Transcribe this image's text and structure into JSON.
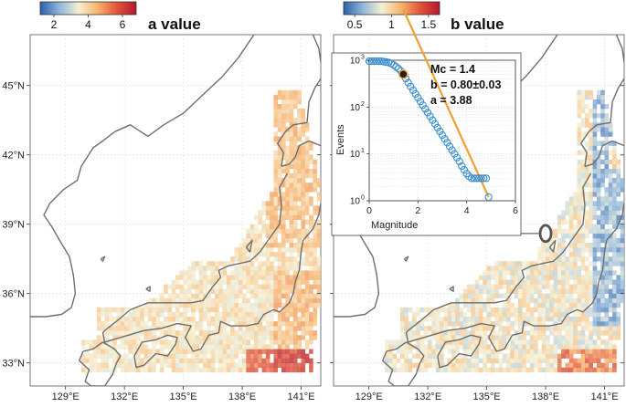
{
  "panels": [
    {
      "id": "a",
      "title": "a value",
      "colorbar": {
        "ticks": [
          "2",
          "4",
          "6"
        ],
        "tick_values": [
          2,
          4,
          6
        ],
        "range": [
          1.2,
          6.8
        ],
        "colors": [
          "#2c5fa8",
          "#8fb6da",
          "#f5f0d2",
          "#f6b26b",
          "#e0543b",
          "#b2182b"
        ]
      }
    },
    {
      "id": "b",
      "title": "b value",
      "colorbar": {
        "ticks": [
          "0.5",
          "1",
          "1.5"
        ],
        "tick_values": [
          0.5,
          1,
          1.5
        ],
        "range": [
          0.35,
          1.65
        ],
        "colors": [
          "#2c5fa8",
          "#8fb6da",
          "#f5f0d2",
          "#f6b26b",
          "#e0543b",
          "#b2182b"
        ]
      }
    }
  ],
  "map_axes": {
    "lon_ticks": [
      "129°E",
      "132°E",
      "135°E",
      "138°E",
      "141°E"
    ],
    "lon_values": [
      129,
      132,
      135,
      138,
      141
    ],
    "lat_ticks": [
      "33°N",
      "36°N",
      "39°N",
      "42°N",
      "45°N"
    ],
    "lat_values": [
      33,
      36,
      39,
      42,
      45
    ],
    "lon_range": [
      127.2,
      142.0
    ],
    "lat_range": [
      32.0,
      47.2
    ]
  },
  "inset": {
    "annotations": [
      "Mc = 1.4",
      "b = 0.80±0.03",
      "a = 3.88"
    ],
    "mc_value": 1.4,
    "b_value": 0.8,
    "a_value": 3.88,
    "selected_cell": {
      "lon": 138.0,
      "lat": 38.6
    },
    "chart_data": {
      "type": "scatter",
      "title": "",
      "xlabel": "Magnitude",
      "ylabel": "Events",
      "xlim": [
        0,
        6
      ],
      "ylim_log10": [
        0,
        3
      ],
      "x_ticks": [
        "0",
        "2",
        "4",
        "6"
      ],
      "x_tick_values": [
        0,
        2,
        4,
        6
      ],
      "y_ticks": [
        {
          "base": "10",
          "exp": "0",
          "value": 0
        },
        {
          "base": "10",
          "exp": "1",
          "value": 1
        },
        {
          "base": "10",
          "exp": "2",
          "value": 2
        },
        {
          "base": "10",
          "exp": "3",
          "value": 3
        }
      ],
      "grid": true,
      "series": [
        {
          "marker": "open-circle",
          "color": "#3a8fd0",
          "magnitudes": [
            0,
            0.1,
            0.2,
            0.3,
            0.4,
            0.5,
            0.6,
            0.7,
            0.8,
            0.9,
            1.0,
            1.1,
            1.2,
            1.3,
            1.4,
            1.5,
            1.6,
            1.7,
            1.8,
            1.9,
            2.0,
            2.1,
            2.2,
            2.3,
            2.4,
            2.5,
            2.6,
            2.7,
            2.8,
            2.9,
            3.0,
            3.1,
            3.2,
            3.3,
            3.4,
            3.5,
            3.6,
            3.7,
            3.8,
            3.9,
            4.0,
            4.1,
            4.2,
            4.3,
            4.4,
            4.5,
            4.6,
            4.7,
            4.8,
            4.9
          ],
          "log10_counts": [
            2.98,
            2.98,
            2.98,
            2.98,
            2.98,
            2.98,
            2.97,
            2.96,
            2.95,
            2.93,
            2.9,
            2.86,
            2.82,
            2.77,
            2.7,
            2.61,
            2.52,
            2.44,
            2.36,
            2.28,
            2.2,
            2.12,
            2.04,
            1.96,
            1.88,
            1.8,
            1.72,
            1.64,
            1.56,
            1.48,
            1.4,
            1.32,
            1.24,
            1.16,
            1.08,
            1.0,
            0.92,
            0.84,
            0.74,
            0.66,
            0.58,
            0.52,
            0.48,
            0.48,
            0.48,
            0.48,
            0.48,
            0.48,
            0.48,
            0.08
          ]
        },
        {
          "marker": "fit-line",
          "color": "#f0a030",
          "from_magnitude": 1.4,
          "to_magnitude": 4.9
        }
      ],
      "highlight_point": {
        "magnitude": 1.4,
        "log10_count": 2.7,
        "color": "#222222"
      }
    }
  }
}
